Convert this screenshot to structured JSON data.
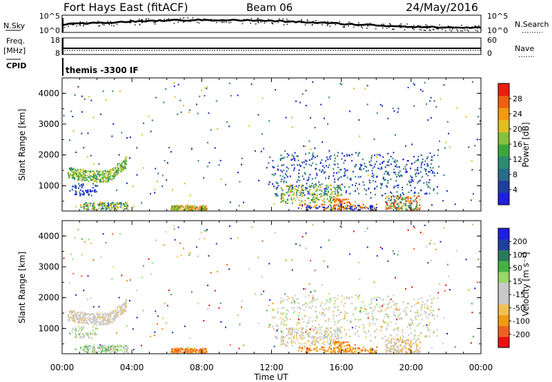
{
  "header": {
    "station": "Fort Hays East (fitACF)",
    "beam": "Beam 06",
    "date": "24/May/2016"
  },
  "aux_panels": {
    "nsky_label": "N.Sky",
    "nsky_top": "10^5",
    "nsky_bottom": "10^0",
    "nsearch_label": "N.Search",
    "nsearch_top": "10^5",
    "nsearch_bottom": "10^0",
    "freq_label": "Freq.",
    "freq_unit": "[MHz]",
    "freq_top": "18",
    "freq_bottom": "8",
    "nave_label": "Nave",
    "nave_top": "60",
    "nave_bottom": "0",
    "cpid_label": "CPID",
    "cpid_text": "themis -3300 IF"
  },
  "colors": {
    "power_scale": [
      "#1f1fe0",
      "#1f3fa0",
      "#2a6a8a",
      "#2e8c6e",
      "#3ca63c",
      "#86c23a",
      "#e0c020",
      "#f29a10",
      "#f06010",
      "#e82010"
    ],
    "velocity_scale": [
      "#e81010",
      "#f06020",
      "#f29a10",
      "#f2c050",
      "#c8c8c8",
      "#c8c8c8",
      "#9ad86a",
      "#46b046",
      "#2a7a5a",
      "#1f3fa0",
      "#1f1fe0"
    ]
  },
  "chart_data": [
    {
      "type": "heatmap",
      "title": "",
      "xlabel": "",
      "ylabel": "Slant Range [km]",
      "xlim": [
        "00:00",
        "24:00"
      ],
      "ylim": [
        180,
        4500
      ],
      "yticks": [
        "1000",
        "2000",
        "3000",
        "4000"
      ],
      "colorbar": {
        "label": "Power [dB]",
        "ticks": [
          "4",
          "8",
          "12",
          "16",
          "20",
          "24",
          "28"
        ],
        "range": [
          0,
          30
        ]
      },
      "regions": [
        {
          "t_start": 0.3,
          "t_end": 3.7,
          "r_start": 1250,
          "r_end": 1800,
          "value": "12-20 dB",
          "shape": "arc"
        },
        {
          "t_start": 0.5,
          "t_end": 2.0,
          "r_start": 700,
          "r_end": 1100,
          "value": "4-12 dB"
        },
        {
          "t_start": 1.0,
          "t_end": 3.8,
          "r_start": 180,
          "r_end": 500,
          "value": "8-24 dB"
        },
        {
          "t_start": 6.2,
          "t_end": 8.3,
          "r_start": 180,
          "r_end": 400,
          "value": "12-28 dB"
        },
        {
          "t_start": 12.0,
          "t_end": 21.5,
          "r_start": 700,
          "r_end": 2200,
          "value": "4-12 dB"
        },
        {
          "t_start": 12.5,
          "t_end": 16.0,
          "r_start": 400,
          "r_end": 1100,
          "value": "12-24 dB"
        },
        {
          "t_start": 15.5,
          "t_end": 16.5,
          "r_start": 200,
          "r_end": 600,
          "value": "16-28 dB"
        },
        {
          "t_start": 18.5,
          "t_end": 20.5,
          "r_start": 200,
          "r_end": 700,
          "value": "8-28 dB"
        }
      ]
    },
    {
      "type": "heatmap",
      "title": "",
      "xlabel": "Time UT",
      "ylabel": "Slant Range [km]",
      "xlim": [
        "00:00",
        "24:00"
      ],
      "ylim": [
        180,
        4500
      ],
      "xticks": [
        "00:00",
        "04:00",
        "08:00",
        "12:00",
        "16:00",
        "20:00",
        "00:00"
      ],
      "yticks": [
        "1000",
        "2000",
        "3000",
        "4000"
      ],
      "colorbar": {
        "label": "Velocity [m s⁻¹]",
        "ticks": [
          "-200",
          "-100",
          "-50",
          "-15",
          "15",
          "50",
          "100",
          "200"
        ],
        "range": [
          -250,
          250
        ]
      },
      "regions": [
        {
          "t_start": 0.3,
          "t_end": 3.7,
          "r_start": 1250,
          "r_end": 1800,
          "value": "-15 to 15 m/s",
          "shape": "arc"
        },
        {
          "t_start": 1.0,
          "t_end": 3.8,
          "r_start": 180,
          "r_end": 500,
          "value": "15 to 50 m/s"
        },
        {
          "t_start": 6.2,
          "t_end": 8.3,
          "r_start": 180,
          "r_end": 400,
          "value": "-100 to -50 m/s"
        },
        {
          "t_start": 12.0,
          "t_end": 21.5,
          "r_start": 500,
          "r_end": 2200,
          "value": "-15 to 15 m/s"
        },
        {
          "t_start": 13.5,
          "t_end": 18.0,
          "r_start": 180,
          "r_end": 450,
          "value": "-50 to -15 m/s"
        }
      ]
    }
  ]
}
